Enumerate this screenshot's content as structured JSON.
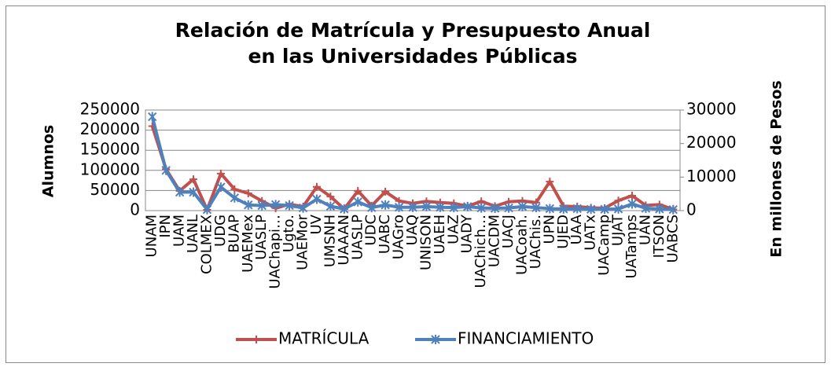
{
  "chart_data": {
    "type": "line",
    "title": "Relación de Matrícula y Presupuesto Anual en las Universidades Públicas",
    "ylabel": "Alumnos",
    "y2label": "En millones de Pesos",
    "categories": [
      "UNAM",
      "IPN",
      "UAM",
      "UANL",
      "COLMEX",
      "UDG",
      "BUAP",
      "UAEMex",
      "UASLP",
      "UAChapi…",
      "Ugto.",
      "UAEMor",
      "UV",
      "UMSNH",
      "UAAAN",
      "UASLP",
      "UDC",
      "UABC",
      "UAGro",
      "UAQ",
      "UNISON",
      "UAEH",
      "UAZ",
      "UADY",
      "UAChich…",
      "UACDM",
      "UACJ",
      "UACoah.",
      "UAChis.",
      "UPN",
      "UJED",
      "UAA",
      "UATx",
      "UACamp",
      "UJAT",
      "UATamps",
      "UAN",
      "ITSON",
      "UABCS"
    ],
    "series": [
      {
        "name": "MATRÍCULA",
        "color": "#c0504d",
        "marker": "plus",
        "values": [
          210000,
          103000,
          49000,
          78000,
          2000,
          92000,
          53000,
          43000,
          24000,
          6000,
          16000,
          10000,
          59000,
          35000,
          4000,
          49000,
          12000,
          47000,
          24000,
          18000,
          23000,
          20000,
          18000,
          11000,
          23000,
          11000,
          22000,
          24000,
          20000,
          72000,
          11000,
          10000,
          7000,
          6000,
          25000,
          37000,
          13000,
          15000,
          3000
        ]
      },
      {
        "name": "FINANCIAMIENTO",
        "color": "#4f81bd",
        "marker": "star",
        "axis": "y2",
        "values": [
          28000,
          12000,
          5500,
          5500,
          300,
          7000,
          3800,
          1700,
          1500,
          1800,
          1500,
          800,
          3400,
          1300,
          500,
          2600,
          900,
          1700,
          1000,
          1000,
          1200,
          1000,
          900,
          1200,
          800,
          700,
          800,
          1200,
          900,
          600,
          500,
          600,
          400,
          400,
          500,
          2000,
          700,
          500,
          300
        ]
      }
    ],
    "ylim": [
      0,
      250000
    ],
    "yticks": [
      0,
      50000,
      100000,
      150000,
      200000,
      250000
    ],
    "y2lim": [
      0,
      30000
    ],
    "y2ticks": [
      0,
      10000,
      20000,
      30000
    ],
    "grid": true,
    "legend": "bottom"
  }
}
